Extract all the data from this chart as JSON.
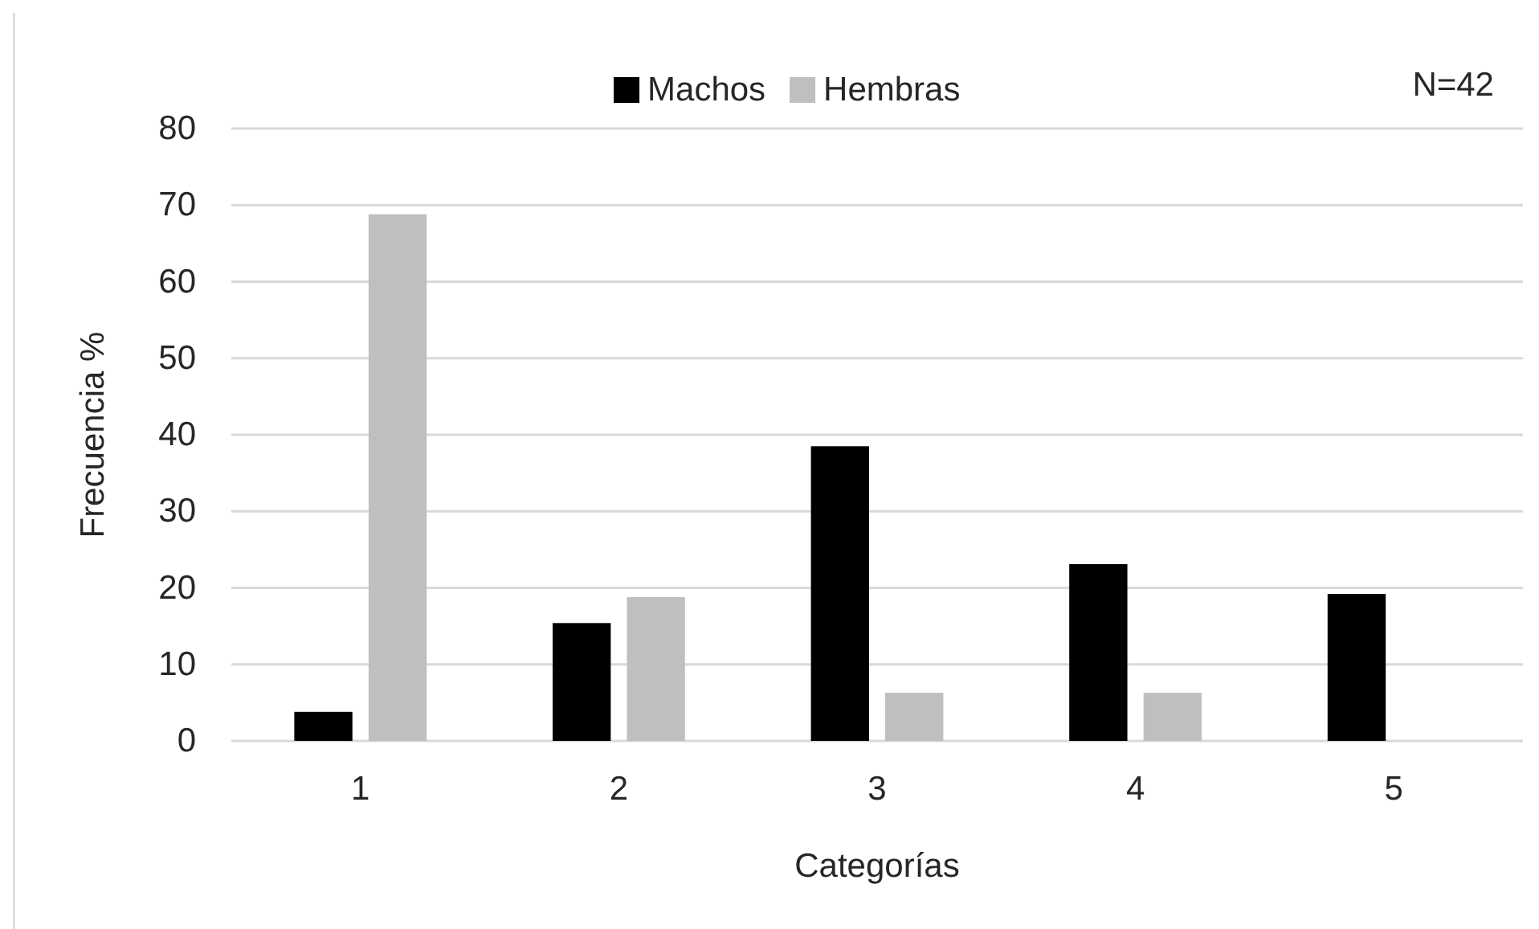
{
  "chart_data": {
    "type": "bar",
    "xlabel": "Categorías",
    "ylabel": "Frecuencia %",
    "annotations": [
      "N=42"
    ],
    "categories": [
      "1",
      "2",
      "3",
      "4",
      "5"
    ],
    "series": [
      {
        "name": "Machos",
        "color": "#000000",
        "values": [
          3.8,
          15.4,
          38.5,
          23.1,
          19.2
        ]
      },
      {
        "name": "Hembras",
        "color": "#bfbfbf",
        "values": [
          68.8,
          18.8,
          6.3,
          6.3,
          0
        ]
      }
    ],
    "ylim": [
      0,
      80
    ],
    "yticks": [
      0,
      10,
      20,
      30,
      40,
      50,
      60,
      70,
      80
    ],
    "grid": "y",
    "legend": "top"
  }
}
